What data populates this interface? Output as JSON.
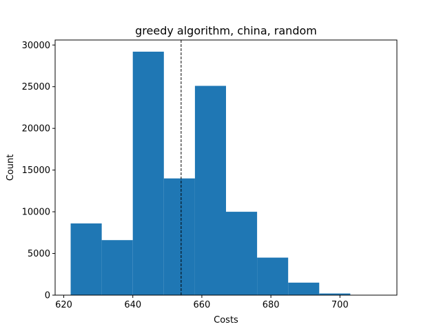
{
  "chart_data": {
    "type": "bar",
    "title": "greedy algorithm, china, random",
    "xlabel": "Costs",
    "ylabel": "Count",
    "bin_edges": [
      622,
      631,
      640,
      649,
      658,
      667,
      676,
      685,
      694,
      703,
      712
    ],
    "counts": [
      8600,
      6600,
      29200,
      14000,
      25100,
      10000,
      4500,
      1500,
      200,
      0
    ],
    "bar_color": "#1f77b4",
    "xlim": [
      617.5,
      716.5
    ],
    "ylim": [
      0,
      30600
    ],
    "xticks": [
      "620",
      "640",
      "660",
      "680",
      "700"
    ],
    "yticks": [
      "0",
      "5000",
      "10000",
      "15000",
      "20000",
      "25000",
      "30000"
    ],
    "reference_line": {
      "x": 654,
      "style": "dashed",
      "color": "#000000"
    },
    "grid": false,
    "legend": "none"
  }
}
